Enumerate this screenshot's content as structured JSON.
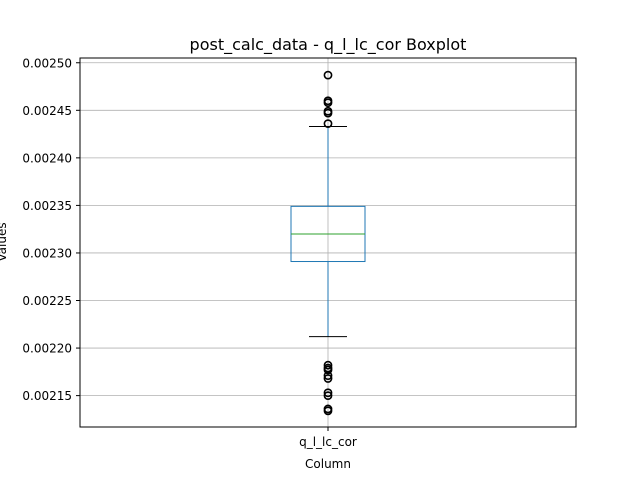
{
  "chart_data": {
    "type": "boxplot",
    "title": "post_calc_data - q_l_lc_cor Boxplot",
    "xlabel": "Column",
    "ylabel": "Values",
    "categories": [
      "q_l_lc_cor"
    ],
    "ylim": [
      0.002117,
      0.002505
    ],
    "yticks": [
      0.00215,
      0.0022,
      0.00225,
      0.0023,
      0.00235,
      0.0024,
      0.00245,
      0.0025
    ],
    "ytick_labels": [
      "0.00215",
      "0.00220",
      "0.00225",
      "0.00230",
      "0.00235",
      "0.00240",
      "0.00245",
      "0.00250"
    ],
    "grid": true,
    "boxes": [
      {
        "name": "q_l_lc_cor",
        "whisker_low": 0.002212,
        "q1": 0.002291,
        "median": 0.00232,
        "q3": 0.002349,
        "whisker_high": 0.002433,
        "outliers": [
          0.002487,
          0.00246,
          0.002458,
          0.002449,
          0.002447,
          0.002436,
          0.002182,
          0.002179,
          0.002177,
          0.002171,
          0.002168,
          0.002153,
          0.00215,
          0.002136,
          0.002134
        ]
      }
    ],
    "colors": {
      "box": "#1f77b4",
      "median": "#2ca02c",
      "whisker": "#1f77b4",
      "cap": "#000000",
      "outlier": "#000000",
      "grid": "#b0b0b0"
    }
  }
}
